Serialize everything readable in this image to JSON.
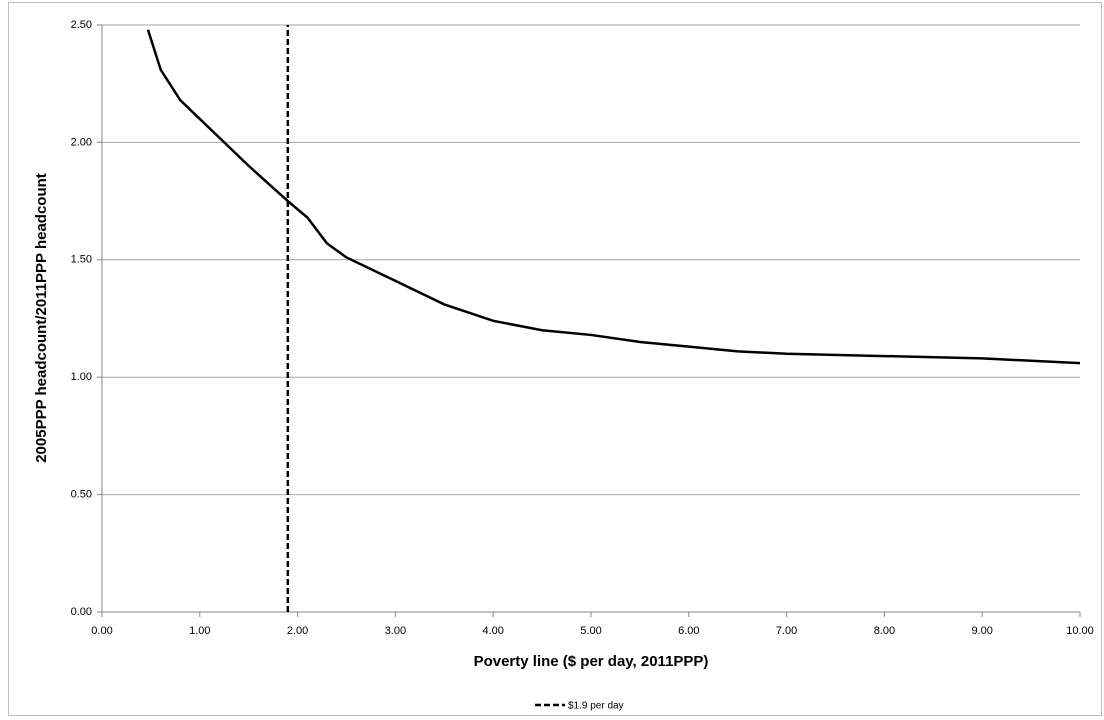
{
  "chart_data": {
    "type": "line",
    "x_label": "Poverty line ($ per day, 2011PPP)",
    "y_label": "2005PPP headcount/2011PPP headcount",
    "xlim": [
      0,
      10
    ],
    "xticks": [
      {
        "value": 0,
        "label": "0.00"
      },
      {
        "value": 1,
        "label": "1.00"
      },
      {
        "value": 2,
        "label": "2.00"
      },
      {
        "value": 3,
        "label": "3.00"
      },
      {
        "value": 4,
        "label": "4.00"
      },
      {
        "value": 5,
        "label": "5.00"
      },
      {
        "value": 6,
        "label": "6.00"
      },
      {
        "value": 7,
        "label": "7.00"
      },
      {
        "value": 8,
        "label": "8.00"
      },
      {
        "value": 9,
        "label": "9.00"
      },
      {
        "value": 10,
        "label": "10.00"
      }
    ],
    "ylim": [
      0,
      2.5
    ],
    "yticks": [
      {
        "value": 0,
        "label": "0.00"
      },
      {
        "value": 0.5,
        "label": "0.50"
      },
      {
        "value": 1,
        "label": "1.00"
      },
      {
        "value": 1.5,
        "label": "1.50"
      },
      {
        "value": 2,
        "label": "2.00"
      },
      {
        "value": 2.5,
        "label": "2.50"
      }
    ],
    "grid": true,
    "legend": "bottom",
    "series": [
      {
        "color": "#000000",
        "dashed": false,
        "x": [
          0.47,
          0.6,
          0.8,
          1.0,
          1.5,
          1.9,
          2.1,
          2.3,
          2.5,
          2.8,
          3.0,
          3.5,
          4.0,
          4.5,
          5.0,
          5.5,
          6.0,
          6.5,
          7.0,
          8.0,
          9.0,
          10.0
        ],
        "values": [
          2.48,
          2.31,
          2.18,
          2.1,
          1.9,
          1.75,
          1.68,
          1.57,
          1.51,
          1.45,
          1.41,
          1.31,
          1.24,
          1.2,
          1.18,
          1.15,
          1.13,
          1.11,
          1.1,
          1.09,
          1.08,
          1.06
        ]
      },
      {
        "name": "$1.9 per day",
        "color": "#000000",
        "dashed": true,
        "x": [
          1.9,
          1.9
        ],
        "values": [
          0,
          2.5
        ]
      }
    ]
  }
}
